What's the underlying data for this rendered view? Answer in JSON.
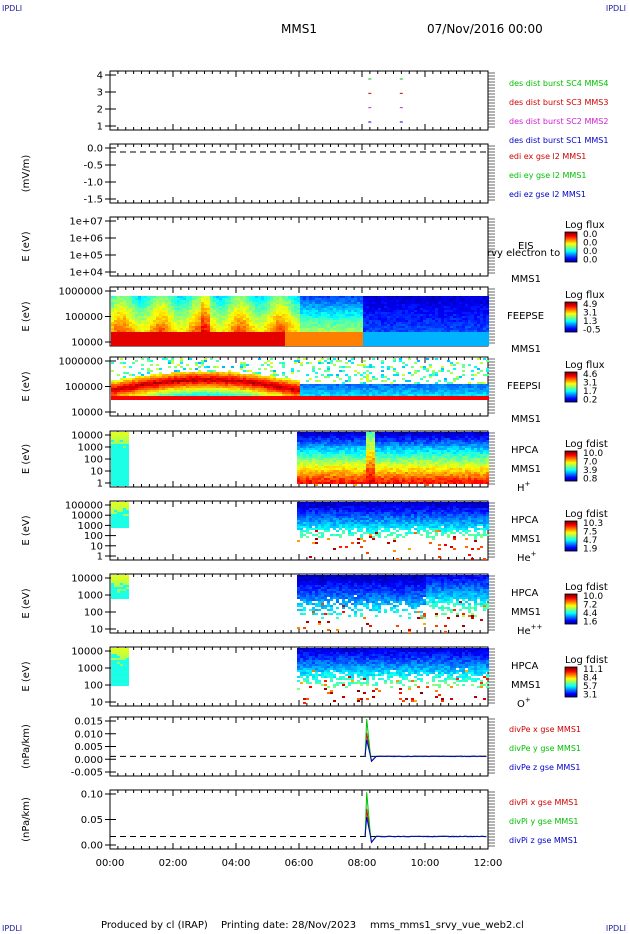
{
  "page": {
    "corner_label": "IPDLI",
    "mission": "MMS1",
    "date": "07/Nov/2016 00:00",
    "footer_produced": "Produced by cl (IRAP)",
    "footer_printing": "Printing date: 28/Nov/2023",
    "footer_file": "mms_mms1_srvy_vue_web2.cl"
  },
  "time_axis": {
    "ticks": [
      "00:00",
      "02:00",
      "04:00",
      "06:00",
      "08:00",
      "10:00",
      "12:00"
    ],
    "range_hours": [
      0,
      12
    ]
  },
  "colors": {
    "blue": "#0000c8",
    "magenta": "#d020d0",
    "red": "#d00000",
    "green": "#00c000"
  },
  "chart_data": [
    {
      "type": "scatter",
      "panel": "burst",
      "yticks": [
        "1",
        "2",
        "3",
        "4"
      ],
      "ylim": [
        0.5,
        4.5
      ],
      "series": [
        {
          "name": "des dist burst SC1 MMS1",
          "color": "#0000c8",
          "y": 1,
          "x_hours": [
            8.2,
            9.2
          ]
        },
        {
          "name": "des dist burst SC2 MMS2",
          "color": "#d020d0",
          "y": 2,
          "x_hours": [
            8.2,
            9.2
          ]
        },
        {
          "name": "des dist burst SC3 MMS3",
          "color": "#d00000",
          "y": 3,
          "x_hours": [
            8.2,
            9.2
          ]
        },
        {
          "name": "des dist burst SC4 MMS4",
          "color": "#00c000",
          "y": 4,
          "x_hours": [
            8.2,
            9.2
          ]
        }
      ]
    },
    {
      "type": "line",
      "panel": "edi",
      "ylabel": "(mV/m)",
      "yticks": [
        "0.0",
        "-0.5",
        "-1.0",
        "-1.5"
      ],
      "ylim": [
        -1.6,
        0.15
      ],
      "series": [
        {
          "name": "edi ex gse l2 MMS1",
          "color": "#d00000"
        },
        {
          "name": "edi ey gse l2 MMS1",
          "color": "#00c000"
        },
        {
          "name": "edi ez gse l2 MMS1",
          "color": "#0000c8"
        }
      ]
    },
    {
      "type": "heatmap",
      "panel": "eis",
      "ylabel": "E (eV)",
      "yticks": [
        "1e+07",
        "1e+06",
        "1e+05",
        "1e+04"
      ],
      "side_labels": [
        "EIS",
        "MMS1"
      ],
      "overlay_text": "rvy electron to",
      "colorbar_title": "Log flux",
      "colorbar_ticks": [
        "0.0",
        "0.0",
        "0.0",
        "0.0"
      ]
    },
    {
      "type": "heatmap",
      "panel": "feeps_e",
      "ylabel": "E (eV)",
      "yticks": [
        "1000000",
        "100000",
        "10000"
      ],
      "side_labels": [
        "FEEPSE",
        "MMS1"
      ],
      "colorbar_title": "Log flux",
      "colorbar_ticks": [
        "4.9",
        "3.1",
        "1.3",
        "-0.5"
      ]
    },
    {
      "type": "heatmap",
      "panel": "feeps_i",
      "ylabel": "E (eV)",
      "yticks": [
        "1000000",
        "100000",
        "10000"
      ],
      "side_labels": [
        "FEEPSI",
        "MMS1"
      ],
      "colorbar_title": "Log flux",
      "colorbar_ticks": [
        "4.6",
        "3.1",
        "1.7",
        "0.2"
      ]
    },
    {
      "type": "heatmap",
      "panel": "hpca_h",
      "ylabel": "E (eV)",
      "yticks": [
        "10000",
        "1000",
        "100",
        "10",
        "1"
      ],
      "side_labels": [
        "HPCA",
        "MMS1",
        "H+"
      ],
      "colorbar_title": "Log fdist",
      "colorbar_ticks": [
        "10.0",
        "7.0",
        "3.9",
        "0.8"
      ]
    },
    {
      "type": "heatmap",
      "panel": "hpca_he1",
      "ylabel": "E (eV)",
      "yticks": [
        "100000",
        "10000",
        "1000",
        "100",
        "10",
        "1"
      ],
      "side_labels": [
        "HPCA",
        "MMS1",
        "He+"
      ],
      "colorbar_title": "Log fdist",
      "colorbar_ticks": [
        "10.3",
        "7.5",
        "4.7",
        "1.9"
      ]
    },
    {
      "type": "heatmap",
      "panel": "hpca_he2",
      "ylabel": "E (eV)",
      "yticks": [
        "10000",
        "1000",
        "100",
        "10"
      ],
      "side_labels": [
        "HPCA",
        "MMS1",
        "He++"
      ],
      "colorbar_title": "Log fdist",
      "colorbar_ticks": [
        "10.0",
        "7.2",
        "4.4",
        "1.6"
      ]
    },
    {
      "type": "heatmap",
      "panel": "hpca_o",
      "ylabel": "E (eV)",
      "yticks": [
        "10000",
        "1000",
        "100",
        "10"
      ],
      "side_labels": [
        "HPCA",
        "MMS1",
        "O+"
      ],
      "colorbar_title": "Log fdist",
      "colorbar_ticks": [
        "11.1",
        "8.4",
        "5.7",
        "3.1"
      ]
    },
    {
      "type": "line",
      "panel": "divpe",
      "ylabel": "(nPa/km)",
      "yticks": [
        "0.015",
        "0.010",
        "0.005",
        "0.000",
        "-0.005"
      ],
      "ylim": [
        -0.008,
        0.016
      ],
      "spike_hour": 8.15,
      "series": [
        {
          "name": "divPe x gse MMS1",
          "color": "#d00000"
        },
        {
          "name": "divPe y gse MMS1",
          "color": "#00c000"
        },
        {
          "name": "divPe z gse MMS1",
          "color": "#0000c8"
        }
      ]
    },
    {
      "type": "line",
      "panel": "divpi",
      "ylabel": "(nPa/km)",
      "yticks": [
        "0.10",
        "0.05",
        "0.00"
      ],
      "ylim": [
        -0.035,
        0.13
      ],
      "spike_hour": 8.15,
      "series": [
        {
          "name": "divPi x gse MMS1",
          "color": "#d00000"
        },
        {
          "name": "divPi y gse MMS1",
          "color": "#00c000"
        },
        {
          "name": "divPi z gse MMS1",
          "color": "#0000c8"
        }
      ]
    }
  ]
}
